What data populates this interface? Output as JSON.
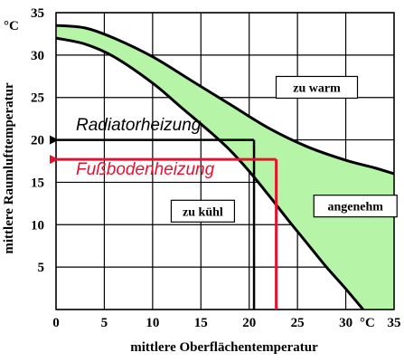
{
  "chart_data": {
    "type": "area",
    "xlabel": "mittlere Oberflächentemperatur",
    "ylabel": "mittlere Raumlufttemperatur",
    "x_unit": "°C",
    "y_unit": "°C",
    "xlim": [
      0,
      35
    ],
    "ylim": [
      0,
      35
    ],
    "x_ticks": [
      "0",
      "5",
      "10",
      "15",
      "20",
      "25",
      "30",
      "35"
    ],
    "y_ticks": [
      "5",
      "10",
      "15",
      "20",
      "25",
      "30",
      "35"
    ],
    "grid": true,
    "comfort_band": {
      "fill_color": "#b6f5a8",
      "upper": [
        [
          0,
          33.5
        ],
        [
          3,
          33.2
        ],
        [
          6,
          32.0
        ],
        [
          10,
          29.8
        ],
        [
          14,
          27.0
        ],
        [
          18,
          24.2
        ],
        [
          22,
          21.4
        ],
        [
          26,
          19.2
        ],
        [
          30,
          17.6
        ],
        [
          33,
          16.7
        ],
        [
          35,
          16.0
        ]
      ],
      "lower": [
        [
          0,
          32.0
        ],
        [
          3,
          31.3
        ],
        [
          6,
          29.8
        ],
        [
          10,
          26.7
        ],
        [
          13,
          23.8
        ],
        [
          16,
          20.9
        ],
        [
          18,
          18.8
        ],
        [
          20,
          16.3
        ],
        [
          22,
          13.5
        ],
        [
          24,
          10.6
        ],
        [
          26,
          7.8
        ],
        [
          28,
          5.0
        ],
        [
          29.8,
          2.7
        ],
        [
          31.8,
          0.0
        ]
      ]
    },
    "regions": [
      {
        "label": "zu warm",
        "x": 27,
        "y": 26.2
      },
      {
        "label": "zu kühl",
        "x": 15.2,
        "y": 11.6
      },
      {
        "label": "angenehm",
        "x": 31,
        "y": 12.2
      }
    ],
    "annotations": [
      {
        "label": "Radiatorheizung",
        "color": "#000000",
        "x_surface": 20.5,
        "y_air": 20
      },
      {
        "label": "Fußbodenheizung",
        "color": "#e8102e",
        "x_surface": 22.8,
        "y_air": 17.7
      }
    ]
  }
}
